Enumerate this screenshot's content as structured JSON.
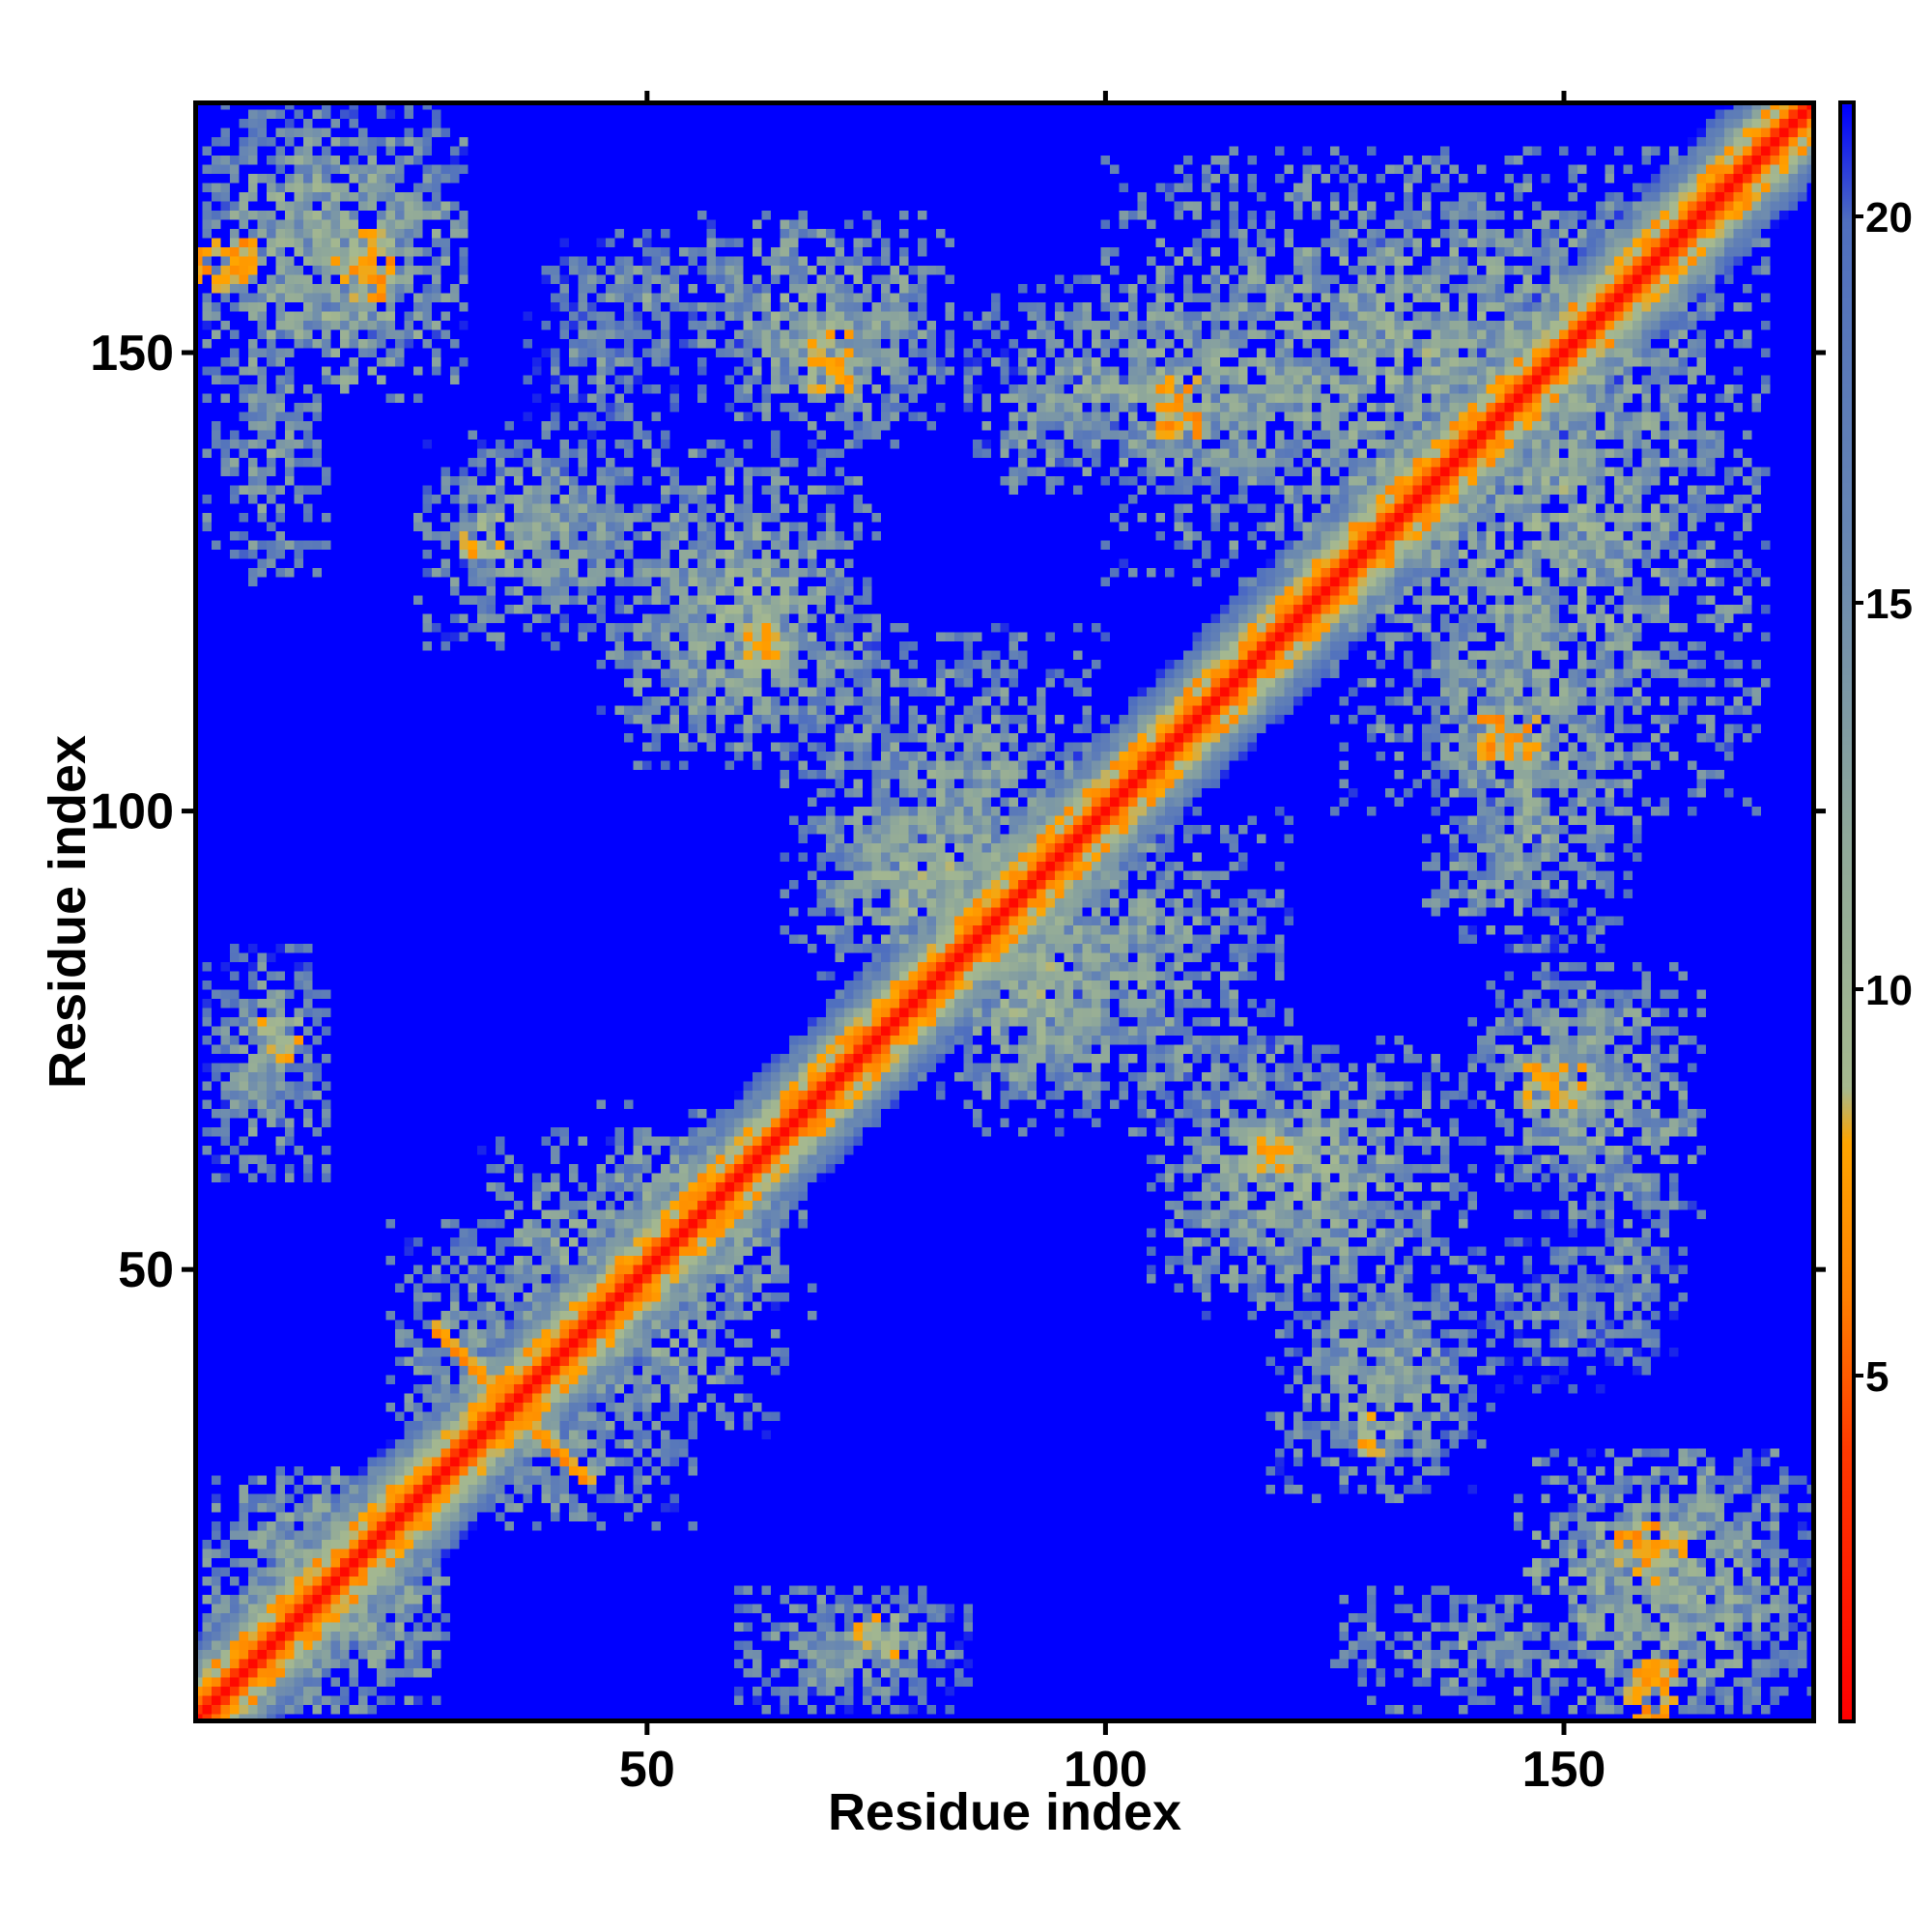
{
  "chart_data": {
    "type": "heatmap",
    "title": "",
    "xlabel": "Residue index",
    "ylabel": "Residue index",
    "x_range": [
      1,
      177
    ],
    "y_range": [
      1,
      177
    ],
    "n_residues": 177,
    "x_ticks": [
      50,
      100,
      150
    ],
    "y_ticks": [
      50,
      100,
      150
    ],
    "colorbar": {
      "ticks": [
        5,
        10,
        15,
        20
      ],
      "range": [
        0.5,
        21.5
      ],
      "stops": [
        {
          "value": 0.5,
          "color": "#ff0000"
        },
        {
          "value": 4,
          "color": "#ff3a00"
        },
        {
          "value": 6,
          "color": "#ff8000"
        },
        {
          "value": 8,
          "color": "#ffa500"
        },
        {
          "value": 8.7,
          "color": "#a6b98f"
        },
        {
          "value": 12,
          "color": "#8fa89a"
        },
        {
          "value": 16,
          "color": "#6685b3"
        },
        {
          "value": 20,
          "color": "#4f6fbf"
        },
        {
          "value": 21.5,
          "color": "#0000ff"
        }
      ],
      "background_value": 21.5,
      "background_color": "#0000ff"
    },
    "diagonal": {
      "half_width_residues": 6
    },
    "contact_regions": [
      {
        "x": [
          2,
          30
        ],
        "y": [
          150,
          177
        ],
        "value": 13
      },
      {
        "x": [
          30,
          50
        ],
        "y": [
          122,
          142
        ],
        "value": 13
      },
      {
        "x": [
          37,
          53
        ],
        "y": [
          140,
          160
        ],
        "value": 15
      },
      {
        "x": [
          47,
          72
        ],
        "y": [
          107,
          135
        ],
        "value": 12
      },
      {
        "x": [
          55,
          83
        ],
        "y": [
          143,
          165
        ],
        "value": 12
      },
      {
        "x": [
          85,
          103
        ],
        "y": [
          138,
          150
        ],
        "value": 15
      },
      {
        "x": [
          100,
          165
        ],
        "y": [
          125,
          172
        ],
        "value": 12
      },
      {
        "x": [
          135,
          158
        ],
        "y": [
          85,
          125
        ],
        "value": 12
      },
      {
        "x": [
          2,
          15
        ],
        "y": [
          65,
          85
        ],
        "value": 14
      },
      {
        "x": [
          68,
          100
        ],
        "y": [
          80,
          105
        ],
        "value": 12
      },
      {
        "x": [
          85,
          120
        ],
        "y": [
          65,
          100
        ],
        "value": 13
      },
      {
        "x": [
          105,
          140
        ],
        "y": [
          45,
          75
        ],
        "value": 12
      },
      {
        "x": [
          140,
          160
        ],
        "y": [
          60,
          82
        ],
        "value": 13
      },
      {
        "x": [
          150,
          163
        ],
        "y": [
          40,
          60
        ],
        "value": 14
      },
      {
        "x": [
          118,
          140
        ],
        "y": [
          25,
          47
        ],
        "value": 13
      },
      {
        "x": [
          145,
          175
        ],
        "y": [
          2,
          30
        ],
        "value": 11
      },
      {
        "x": [
          125,
          150
        ],
        "y": [
          2,
          15
        ],
        "value": 13
      },
      {
        "x": [
          60,
          85
        ],
        "y": [
          2,
          15
        ],
        "value": 13
      },
      {
        "x": [
          2,
          28
        ],
        "y": [
          2,
          28
        ],
        "value": 12
      },
      {
        "x": [
          22,
          40
        ],
        "y": [
          25,
          55
        ],
        "value": 13
      },
      {
        "x": [
          38,
          65
        ],
        "y": [
          32,
          48
        ],
        "value": 13
      },
      {
        "x": [
          42,
          68
        ],
        "y": [
          45,
          65
        ],
        "value": 12
      },
      {
        "x": [
          70,
          90
        ],
        "y": [
          85,
          100
        ],
        "value": 11
      }
    ],
    "hotspots": [
      {
        "x": 108,
        "y": 143,
        "value": 6
      },
      {
        "x": 145,
        "y": 108,
        "value": 6
      },
      {
        "x": 158,
        "y": 20,
        "value": 6
      },
      {
        "x": 160,
        "y": 5,
        "value": 6
      },
      {
        "x": 3,
        "y": 159,
        "value": 6
      },
      {
        "x": 20,
        "y": 162,
        "value": 7
      },
      {
        "x": 63,
        "y": 118,
        "value": 7
      },
      {
        "x": 70,
        "y": 148,
        "value": 7
      },
      {
        "x": 10,
        "y": 75,
        "value": 7
      },
      {
        "x": 118,
        "y": 62,
        "value": 7
      },
      {
        "x": 150,
        "y": 70,
        "value": 7
      },
      {
        "x": 130,
        "y": 32,
        "value": 7
      }
    ],
    "cross_feature": {
      "center": [
        35,
        35
      ],
      "half_length": 8,
      "value": 6
    }
  }
}
